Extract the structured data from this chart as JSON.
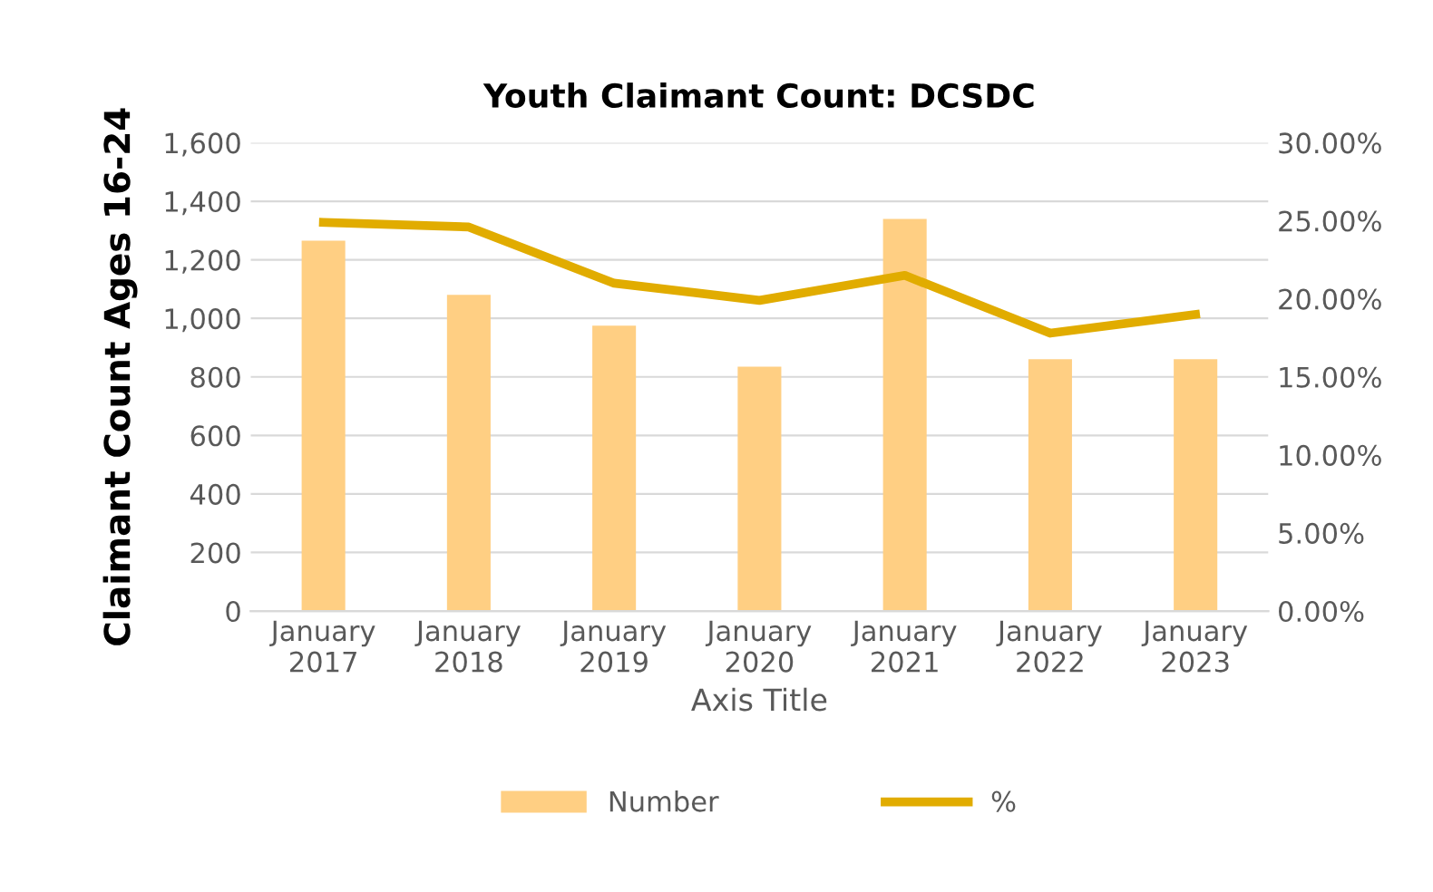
{
  "chart_data": {
    "type": "bar",
    "title": "Youth Claimant Count: DCSDC",
    "xlabel": "Axis Title",
    "ylabel": "Claimant Count Ages 16-24",
    "categories": [
      "January\n2017",
      "January\n2018",
      "January\n2019",
      "January\n2020",
      "January\n2021",
      "January\n2022",
      "January\n2023"
    ],
    "series": [
      {
        "name": "Number",
        "color": "#ffcf83",
        "values": [
          1265,
          1080,
          975,
          835,
          1340,
          860,
          860
        ]
      },
      {
        "name": "%",
        "type": "line",
        "axis": "y2",
        "color": "#e1ac00",
        "values": [
          24.9,
          24.6,
          21.0,
          19.9,
          21.5,
          17.8,
          19.0
        ]
      }
    ],
    "ylim": [
      0,
      1600
    ],
    "yticks": [
      {
        "value": 0,
        "label": "0"
      },
      {
        "value": 200,
        "label": "200"
      },
      {
        "value": 400,
        "label": "400"
      },
      {
        "value": 600,
        "label": "600"
      },
      {
        "value": 800,
        "label": "800"
      },
      {
        "value": 1000,
        "label": "1,000"
      },
      {
        "value": 1200,
        "label": "1,200"
      },
      {
        "value": 1400,
        "label": "1,400"
      },
      {
        "value": 1600,
        "label": "1,600"
      }
    ],
    "y2lim": [
      0,
      30
    ],
    "y2ticks": [
      {
        "value": 0,
        "label": "0.00%"
      },
      {
        "value": 5,
        "label": "5.00%"
      },
      {
        "value": 10,
        "label": "10.00%"
      },
      {
        "value": 15,
        "label": "15.00%"
      },
      {
        "value": 20,
        "label": "20.00%"
      },
      {
        "value": 25,
        "label": "25.00%"
      },
      {
        "value": 30,
        "label": "30.00%"
      }
    ],
    "grid": "y",
    "legend": "bottom",
    "marker": "none",
    "line_style": "solid"
  }
}
